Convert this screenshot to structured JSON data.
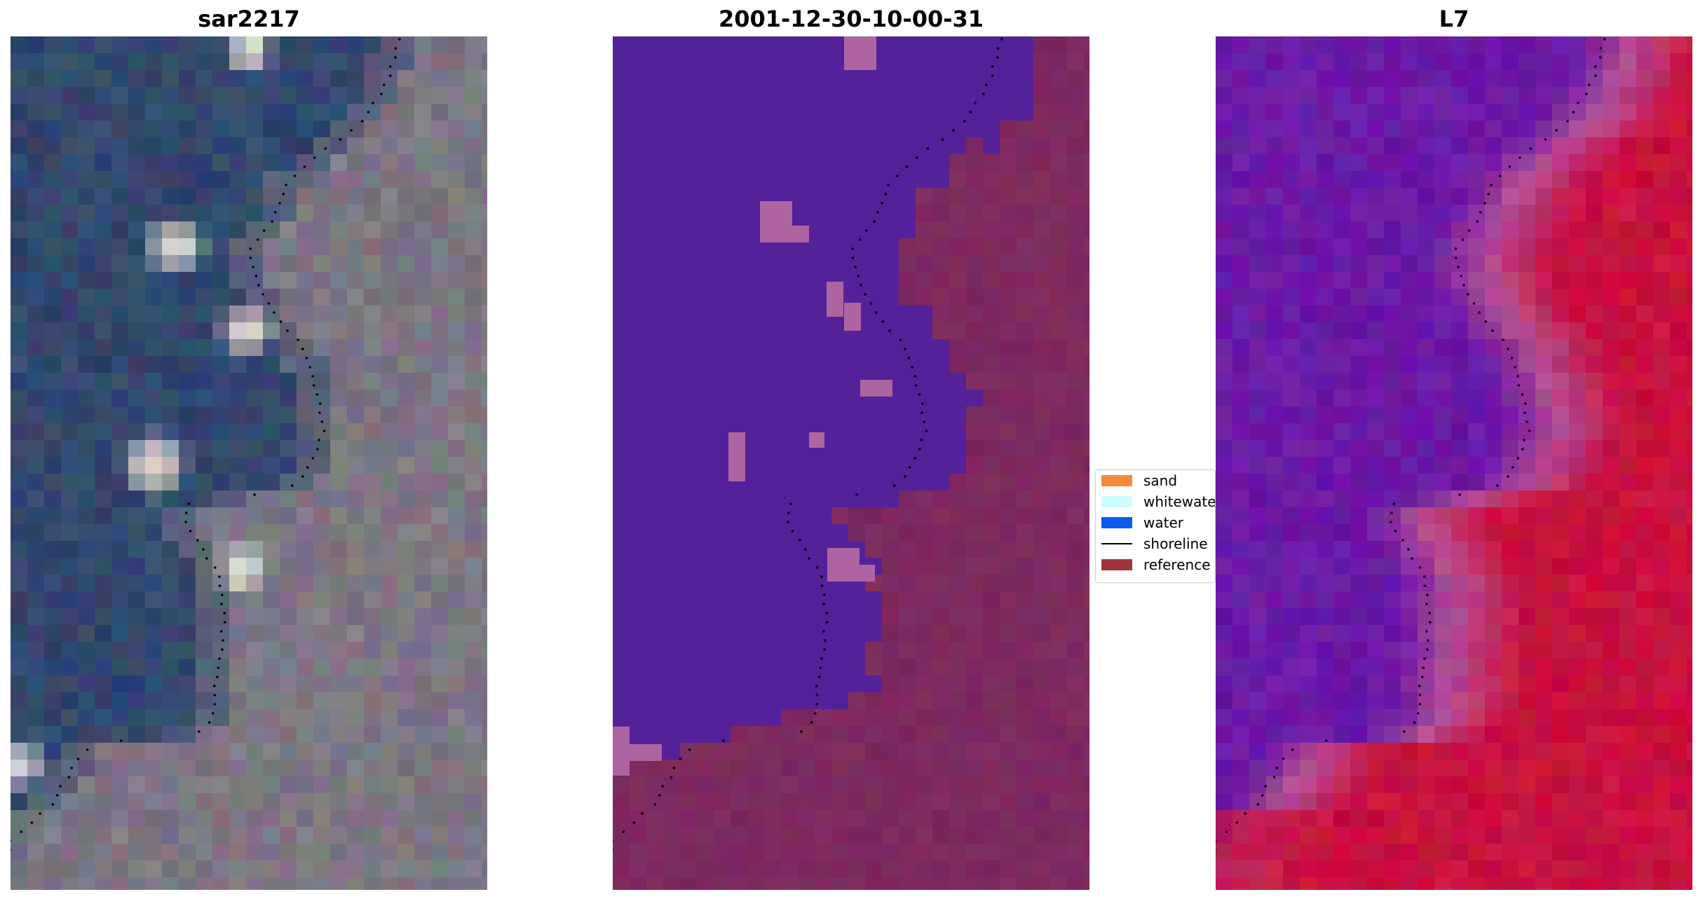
{
  "panels": [
    {
      "title": "sar2217",
      "image": "rgb-satellite-image"
    },
    {
      "title": "2001-12-30-10-00-31",
      "image": "classified-image"
    },
    {
      "title": "L7",
      "image": "mndwi-image"
    }
  ],
  "legend": {
    "items": [
      {
        "label": "sand",
        "kind": "patch",
        "color": "#f5883a"
      },
      {
        "label": "whitewater",
        "kind": "patch",
        "color": "#ccfcfc"
      },
      {
        "label": "water",
        "kind": "patch",
        "color": "#0a5cf0"
      },
      {
        "label": "shoreline",
        "kind": "line",
        "color": "#000000"
      },
      {
        "label": "reference",
        "kind": "patch",
        "color": "#a0363d"
      }
    ]
  },
  "colors": {
    "rgb_water": "#33486e",
    "rgb_land": "#7d7783",
    "rgb_whitewater": "#d9d5cc",
    "class_water": "#53219a",
    "class_land": "#7d2a5e",
    "class_sand_patch": "#ad64a0",
    "mndwi_water": "#6b1aa6",
    "mndwi_land": "#c8113e",
    "mndwi_transition": "#b34d93",
    "shoreline": "#000000"
  }
}
